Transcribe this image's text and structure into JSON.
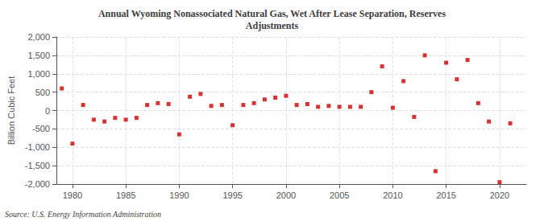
{
  "chart_data": {
    "type": "scatter",
    "title": "Annual Wyoming Nonassociated Natural Gas, Wet After Lease Separation, Reserves\nAdjustments",
    "ylabel": "Billion Cubic Feet",
    "source": "Source: U.S. Energy Information Administration",
    "x": [
      1979,
      1980,
      1981,
      1982,
      1983,
      1984,
      1985,
      1986,
      1987,
      1988,
      1989,
      1990,
      1991,
      1992,
      1993,
      1994,
      1995,
      1996,
      1997,
      1998,
      1999,
      2000,
      2001,
      2002,
      2003,
      2004,
      2005,
      2006,
      2007,
      2008,
      2009,
      2010,
      2011,
      2012,
      2013,
      2014,
      2015,
      2016,
      2017,
      2018,
      2019,
      2020,
      2021
    ],
    "values": [
      600,
      -900,
      150,
      -250,
      -300,
      -200,
      -250,
      -200,
      150,
      200,
      175,
      -650,
      375,
      450,
      125,
      150,
      -400,
      150,
      200,
      300,
      350,
      400,
      150,
      175,
      100,
      125,
      100,
      100,
      100,
      500,
      1200,
      75,
      800,
      -175,
      1500,
      -1650,
      1300,
      850,
      1375,
      200,
      -300,
      -1950,
      -350
    ],
    "color": "#cc0000",
    "marker": "square",
    "xlim": [
      1978.5,
      2022.5
    ],
    "xticks": [
      1980,
      1985,
      1990,
      1995,
      2000,
      2005,
      2010,
      2015,
      2020
    ],
    "ylim": [
      -2000,
      2000
    ],
    "yticks": [
      {
        "value": -2000,
        "label": "-2,000"
      },
      {
        "value": -1500,
        "label": "-1,500"
      },
      {
        "value": -1000,
        "label": "-1,000"
      },
      -500,
      0,
      500,
      {
        "value": 1000,
        "label": "1,000"
      },
      {
        "value": 1500,
        "label": "1,500"
      },
      {
        "value": 2000,
        "label": "2,000"
      }
    ],
    "grid": true
  }
}
